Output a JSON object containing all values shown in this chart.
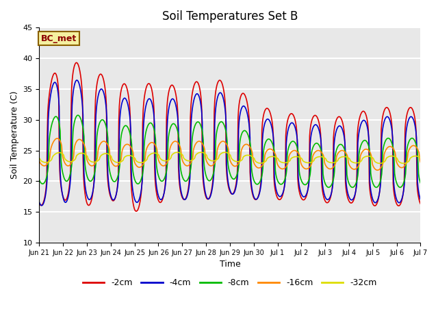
{
  "title": "Soil Temperatures Set B",
  "xlabel": "Time",
  "ylabel": "Soil Temperature (C)",
  "ylim": [
    10,
    45
  ],
  "annotation": "BC_met",
  "background_color": "#e8e8e8",
  "legend": [
    "-2cm",
    "-4cm",
    "-8cm",
    "-16cm",
    "-32cm"
  ],
  "colors": {
    "-2cm": "#dd0000",
    "-4cm": "#0000cc",
    "-8cm": "#00bb00",
    "-16cm": "#ff8800",
    "-32cm": "#dddd00"
  },
  "tick_labels": [
    "Jun 21",
    "Jun 22",
    "Jun 23",
    "Jun 24",
    "Jun 25",
    "Jun 26",
    "Jun 27",
    "Jun 28",
    "Jun 29",
    "Jun 30",
    "Jul 1",
    "Jul 2",
    "Jul 3",
    "Jul 4",
    "Jul 5",
    "Jul 6",
    "Jul 7"
  ],
  "grid_color": "white",
  "linewidth": 1.2,
  "days": 16,
  "hours_per_day": 48
}
